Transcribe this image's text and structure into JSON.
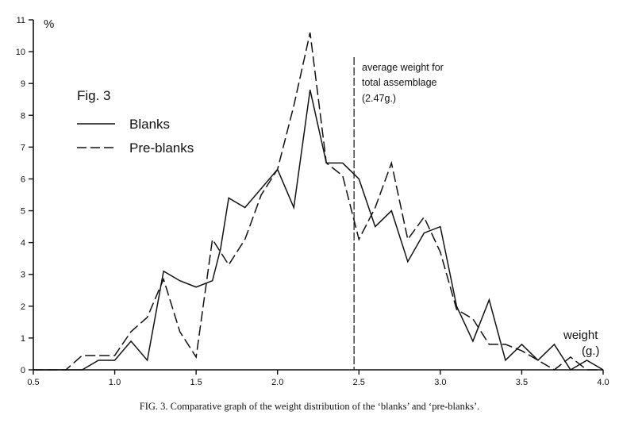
{
  "chart_data": {
    "type": "line",
    "title": "Fig. 3",
    "xlabel": "weight",
    "xlabel_unit": "(g.)",
    "ylabel": "%",
    "xlim": [
      0.5,
      4.0
    ],
    "ylim": [
      0,
      11
    ],
    "x_ticks": [
      "0.5",
      "1.0",
      "1.5",
      "2.0",
      "2.5",
      "3.0",
      "3.5",
      "4.0"
    ],
    "y_ticks": [
      "0",
      "1",
      "2",
      "3",
      "4",
      "5",
      "6",
      "7",
      "8",
      "9",
      "10",
      "11"
    ],
    "grid": false,
    "legend_position": "top-left",
    "series": [
      {
        "name": "Blanks",
        "style": "solid",
        "x": [
          0.5,
          0.6,
          0.7,
          0.8,
          0.9,
          1.0,
          1.1,
          1.2,
          1.3,
          1.4,
          1.5,
          1.6,
          1.65,
          1.7,
          1.8,
          1.9,
          2.0,
          2.1,
          2.2,
          2.3,
          2.4,
          2.5,
          2.6,
          2.7,
          2.8,
          2.9,
          3.0,
          3.1,
          3.2,
          3.3,
          3.4,
          3.5,
          3.6,
          3.7,
          3.8,
          3.9,
          4.0
        ],
        "y": [
          0,
          0,
          0,
          0,
          0.3,
          0.3,
          0.9,
          0.3,
          3.1,
          2.8,
          2.6,
          2.8,
          3.8,
          5.4,
          5.1,
          5.7,
          6.3,
          5.1,
          8.8,
          6.5,
          6.5,
          6.0,
          4.5,
          5.0,
          3.4,
          4.3,
          4.5,
          2.0,
          0.9,
          2.2,
          0.3,
          0.8,
          0.3,
          0.8,
          0,
          0.3,
          0
        ]
      },
      {
        "name": "Pre-blanks",
        "style": "dashed",
        "x": [
          0.5,
          0.6,
          0.7,
          0.8,
          0.9,
          1.0,
          1.1,
          1.2,
          1.3,
          1.4,
          1.5,
          1.6,
          1.7,
          1.8,
          1.9,
          2.0,
          2.1,
          2.2,
          2.3,
          2.4,
          2.5,
          2.6,
          2.7,
          2.8,
          2.9,
          3.0,
          3.1,
          3.2,
          3.3,
          3.4,
          3.5,
          3.6,
          3.7,
          3.8,
          3.9,
          4.0
        ],
        "y": [
          0,
          0,
          0,
          0.45,
          0.45,
          0.45,
          1.2,
          1.65,
          2.85,
          1.2,
          0.4,
          4.1,
          3.3,
          4.1,
          5.5,
          6.3,
          8.3,
          10.6,
          6.5,
          6.1,
          4.1,
          5.1,
          6.5,
          4.1,
          4.8,
          3.7,
          1.9,
          1.6,
          0.8,
          0.8,
          0.6,
          0.3,
          0,
          0.4,
          0,
          0
        ]
      }
    ],
    "annotation": {
      "lines": [
        "average weight for",
        "total assemblage",
        "(2.47g.)"
      ],
      "x_value": 2.47
    }
  },
  "caption": "FIG. 3. Comparative graph of the weight distribution of the ‘blanks’ and ‘pre-blanks’."
}
